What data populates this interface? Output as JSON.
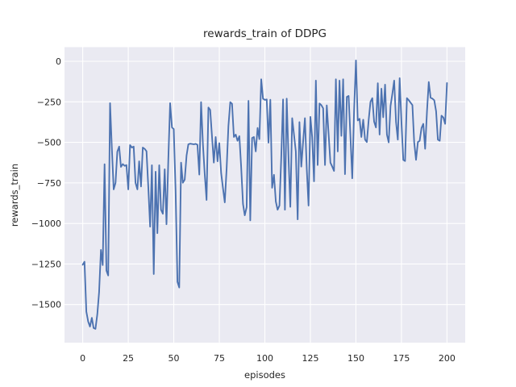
{
  "figure": {
    "background_color": "#ffffff"
  },
  "chart_data": {
    "type": "line",
    "title": "rewards_train of DDPG",
    "xlabel": "episodes",
    "ylabel": "rewards_train",
    "legend": "none",
    "grid": "on",
    "style": "seaborn-darkgrid",
    "line_color": "#4c72b0",
    "plot_bg_color": "#eaeaf2",
    "grid_color": "#ffffff",
    "text_color": "#262626",
    "xlim": [
      -10,
      210
    ],
    "ylim": [
      -1735,
      87
    ],
    "xticks": [
      {
        "v": 0,
        "label": "0"
      },
      {
        "v": 25,
        "label": "25"
      },
      {
        "v": 50,
        "label": "50"
      },
      {
        "v": 75,
        "label": "75"
      },
      {
        "v": 100,
        "label": "100"
      },
      {
        "v": 125,
        "label": "125"
      },
      {
        "v": 150,
        "label": "150"
      },
      {
        "v": 175,
        "label": "175"
      },
      {
        "v": 200,
        "label": "200"
      }
    ],
    "yticks": [
      {
        "v": 0,
        "label": "0"
      },
      {
        "v": -250,
        "label": "−250"
      },
      {
        "v": -500,
        "label": "−500"
      },
      {
        "v": -750,
        "label": "−750"
      },
      {
        "v": -1000,
        "label": "−1000"
      },
      {
        "v": -1250,
        "label": "−1250"
      },
      {
        "v": -1500,
        "label": "−1500"
      }
    ],
    "x_start": 0,
    "x_step": 1,
    "values": [
      -1255,
      -1236,
      -1544,
      -1605,
      -1636,
      -1582,
      -1645,
      -1650,
      -1560,
      -1424,
      -1163,
      -1257,
      -635,
      -1290,
      -1321,
      -258,
      -531,
      -790,
      -749,
      -558,
      -526,
      -651,
      -634,
      -645,
      -640,
      -790,
      -517,
      -532,
      -526,
      -749,
      -790,
      -617,
      -772,
      -532,
      -540,
      -555,
      -772,
      -1020,
      -641,
      -1312,
      -681,
      -1060,
      -641,
      -915,
      -940,
      -666,
      -1005,
      -600,
      -258,
      -408,
      -418,
      -800,
      -1360,
      -1395,
      -625,
      -749,
      -730,
      -581,
      -512,
      -508,
      -510,
      -512,
      -509,
      -515,
      -699,
      -252,
      -512,
      -693,
      -855,
      -285,
      -300,
      -467,
      -625,
      -467,
      -617,
      -505,
      -690,
      -780,
      -870,
      -660,
      -400,
      -252,
      -262,
      -467,
      -452,
      -490,
      -462,
      -650,
      -880,
      -950,
      -900,
      -244,
      -981,
      -473,
      -467,
      -556,
      -411,
      -480,
      -111,
      -230,
      -238,
      -235,
      -502,
      -237,
      -780,
      -700,
      -865,
      -915,
      -890,
      -600,
      -235,
      -915,
      -230,
      -600,
      -898,
      -351,
      -450,
      -556,
      -975,
      -375,
      -650,
      -500,
      -351,
      -666,
      -890,
      -343,
      -467,
      -740,
      -119,
      -640,
      -260,
      -270,
      -290,
      -640,
      -272,
      -450,
      -625,
      -650,
      -676,
      -111,
      -556,
      -119,
      -460,
      -111,
      -696,
      -219,
      -214,
      -470,
      -722,
      -300,
      5,
      -365,
      -355,
      -467,
      -360,
      -483,
      -498,
      -360,
      -250,
      -227,
      -372,
      -408,
      -135,
      -452,
      -169,
      -345,
      -144,
      -452,
      -500,
      -275,
      -202,
      -119,
      -375,
      -483,
      -104,
      -372,
      -608,
      -615,
      -227,
      -240,
      -255,
      -270,
      -498,
      -608,
      -498,
      -490,
      -411,
      -386,
      -540,
      -308,
      -128,
      -225,
      -230,
      -240,
      -308,
      -483,
      -490,
      -335,
      -347,
      -386,
      -134
    ]
  }
}
